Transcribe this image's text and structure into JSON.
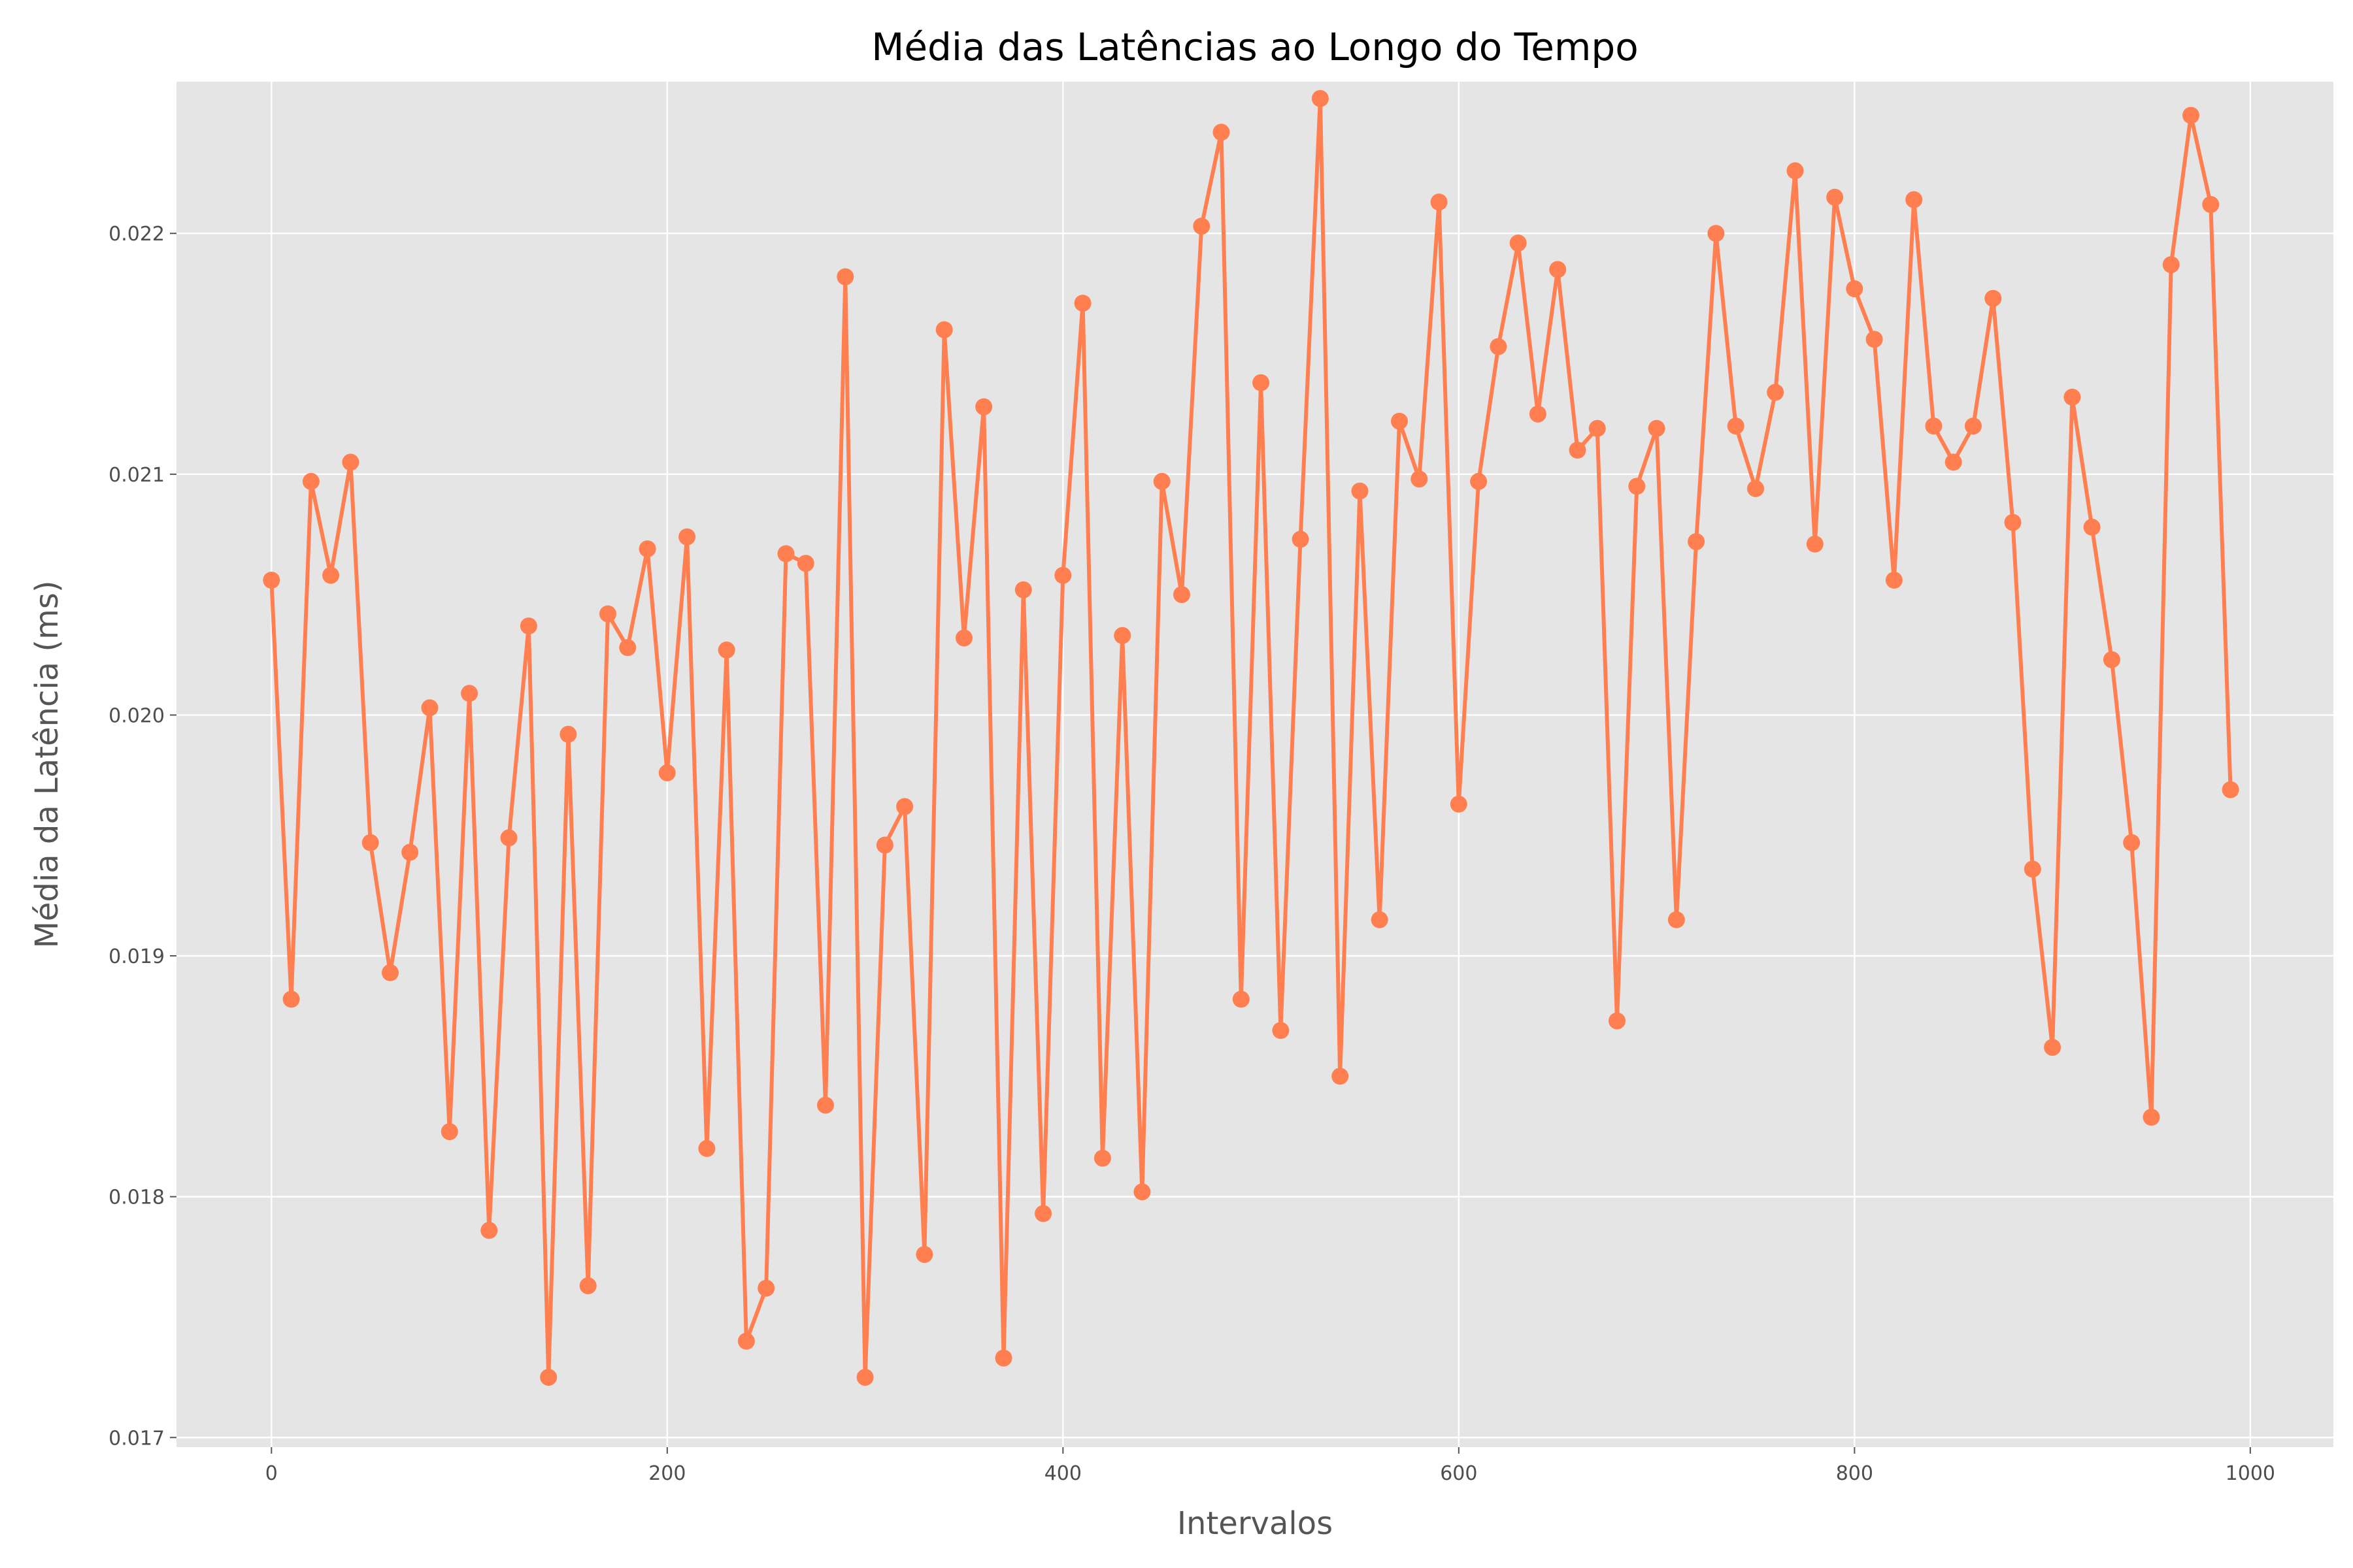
{
  "chart_data": {
    "type": "line",
    "title": "Média das Latências ao Longo do Tempo",
    "xlabel": "Intervalos",
    "ylabel": "Média da Latência (ms)",
    "xlim": [
      -48,
      1042
    ],
    "ylim": [
      0.01696,
      0.02263
    ],
    "x_ticks": [
      0,
      200,
      400,
      600,
      800,
      1000
    ],
    "x_tick_labels": [
      "0",
      "200",
      "400",
      "600",
      "800",
      "1000"
    ],
    "y_ticks": [
      0.017,
      0.018,
      0.019,
      0.02,
      0.021,
      0.022
    ],
    "y_tick_labels": [
      "0.017",
      "0.018",
      "0.019",
      "0.020",
      "0.021",
      "0.022"
    ],
    "grid": true,
    "style": "ggplot",
    "colors": {
      "line": "#ff7f50",
      "plot_bg": "#e5e5e5",
      "grid": "#ffffff",
      "figure_bg": "#ffffff"
    },
    "series": [
      {
        "name": "",
        "marker": "circle",
        "x": [
          0,
          10,
          20,
          30,
          40,
          50,
          60,
          70,
          80,
          90,
          100,
          110,
          120,
          130,
          140,
          150,
          160,
          170,
          180,
          190,
          200,
          210,
          220,
          230,
          240,
          250,
          260,
          270,
          280,
          290,
          300,
          310,
          320,
          330,
          340,
          350,
          360,
          370,
          380,
          390,
          400,
          410,
          420,
          430,
          440,
          450,
          460,
          470,
          480,
          490,
          500,
          510,
          520,
          530,
          540,
          550,
          560,
          570,
          580,
          590,
          600,
          610,
          620,
          630,
          640,
          650,
          660,
          670,
          680,
          690,
          700,
          710,
          720,
          730,
          740,
          750,
          760,
          770,
          780,
          790,
          800,
          810,
          820,
          830,
          840,
          850,
          860,
          870,
          880,
          890,
          900,
          910,
          920,
          930,
          940,
          950,
          960,
          970,
          980,
          990
        ],
        "y": [
          0.02056,
          0.01882,
          0.02097,
          0.02058,
          0.02105,
          0.01947,
          0.01893,
          0.01943,
          0.02003,
          0.01827,
          0.02009,
          0.01786,
          0.01949,
          0.02037,
          0.01725,
          0.01992,
          0.01763,
          0.02042,
          0.02028,
          0.02069,
          0.01976,
          0.02074,
          0.0182,
          0.02027,
          0.0174,
          0.01762,
          0.02067,
          0.02063,
          0.01838,
          0.02182,
          0.01725,
          0.01946,
          0.01962,
          0.01776,
          0.0216,
          0.02032,
          0.02128,
          0.01733,
          0.02052,
          0.01793,
          0.02058,
          0.02171,
          0.01816,
          0.02033,
          0.01802,
          0.02097,
          0.0205,
          0.02203,
          0.02242,
          0.01882,
          0.02138,
          0.01869,
          0.02073,
          0.02256,
          0.0185,
          0.02093,
          0.01915,
          0.02122,
          0.02098,
          0.02213,
          0.01963,
          0.02097,
          0.02153,
          0.02196,
          0.02125,
          0.02185,
          0.0211,
          0.02119,
          0.01873,
          0.02095,
          0.02119,
          0.01915,
          0.02072,
          0.022,
          0.0212,
          0.02094,
          0.02134,
          0.02226,
          0.02071,
          0.02215,
          0.02177,
          0.02156,
          0.02056,
          0.02214,
          0.0212,
          0.02105,
          0.0212,
          0.02173,
          0.0208,
          0.01936,
          0.01862,
          0.02132,
          0.02078,
          0.02023,
          0.01947,
          0.01833,
          0.02187,
          0.02249,
          0.02212,
          0.01969
        ]
      }
    ]
  }
}
